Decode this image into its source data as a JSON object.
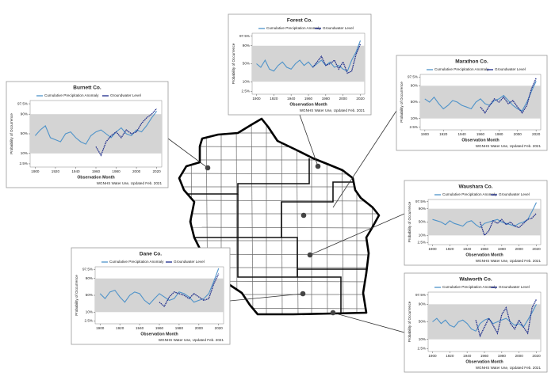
{
  "chart_data": [
    {
      "type": "line",
      "title": "Burnett Co.",
      "xlabel": "Observation Month",
      "ylabel": "Probability of Occurrence",
      "note": "WGNHS Water Use, Updated Feb. 2021",
      "x": [
        1900,
        1905,
        1910,
        1915,
        1920,
        1925,
        1930,
        1935,
        1940,
        1945,
        1950,
        1955,
        1960,
        1965,
        1970,
        1975,
        1980,
        1985,
        1990,
        1995,
        2000,
        2005,
        2010,
        2015,
        2020
      ],
      "series": [
        {
          "name": "Cumulative Precipitation Anomaly",
          "color": "#4f93c9",
          "values": [
            45,
            60,
            70,
            40,
            35,
            30,
            50,
            55,
            40,
            30,
            25,
            45,
            55,
            60,
            50,
            40,
            55,
            65,
            50,
            45,
            60,
            55,
            70,
            85,
            93
          ]
        },
        {
          "name": "Groundwater Level",
          "color": "#1b2a8a",
          "values": [
            null,
            null,
            null,
            null,
            null,
            null,
            null,
            null,
            null,
            null,
            null,
            null,
            20,
            8,
            30,
            45,
            55,
            40,
            60,
            50,
            55,
            75,
            85,
            90,
            95
          ]
        }
      ],
      "xlim": [
        1895,
        2025
      ],
      "xticks": [
        1900,
        1920,
        1940,
        1960,
        1980,
        2000,
        2020
      ],
      "ylim": [
        1.5,
        98.5
      ],
      "yscale": "probit",
      "yticks": [
        {
          "value": 2.5,
          "label": "2.5%"
        },
        {
          "value": 10,
          "label": "10%"
        },
        {
          "value": 50,
          "label": "50%"
        },
        {
          "value": 90,
          "label": "90%"
        },
        {
          "value": 97.5,
          "label": "97.5%"
        }
      ],
      "shaded_range": [
        10,
        90
      ]
    },
    {
      "type": "line",
      "title": "Forest Co.",
      "xlabel": "Observation Month",
      "ylabel": "Probability of Occurrence",
      "note": "WGNHS Water Use, Updated Feb. 2021",
      "x": [
        1900,
        1905,
        1910,
        1915,
        1920,
        1925,
        1930,
        1935,
        1940,
        1945,
        1950,
        1955,
        1960,
        1965,
        1970,
        1975,
        1980,
        1985,
        1990,
        1995,
        2000,
        2005,
        2010,
        2015,
        2020
      ],
      "series": [
        {
          "name": "Cumulative Precipitation Anomaly",
          "color": "#4f93c9",
          "values": [
            50,
            40,
            60,
            35,
            30,
            45,
            55,
            40,
            35,
            50,
            60,
            45,
            55,
            40,
            50,
            60,
            45,
            55,
            40,
            45,
            35,
            30,
            60,
            80,
            95
          ]
        },
        {
          "name": "Groundwater Level",
          "color": "#1b2a8a",
          "values": [
            null,
            null,
            null,
            null,
            null,
            null,
            null,
            null,
            null,
            null,
            null,
            null,
            null,
            40,
            55,
            70,
            45,
            50,
            60,
            35,
            55,
            25,
            30,
            75,
            92
          ]
        }
      ],
      "xlim": [
        1895,
        2025
      ],
      "xticks": [
        1900,
        1920,
        1940,
        1960,
        1980,
        2000,
        2020
      ],
      "ylim": [
        1.5,
        98.5
      ],
      "yscale": "probit",
      "yticks": [
        {
          "value": 2.5,
          "label": "2.5%"
        },
        {
          "value": 10,
          "label": "10%"
        },
        {
          "value": 50,
          "label": "50%"
        },
        {
          "value": 90,
          "label": "90%"
        },
        {
          "value": 97.5,
          "label": "97.5%"
        }
      ],
      "shaded_range": [
        10,
        90
      ]
    },
    {
      "type": "line",
      "title": "Marathon Co.",
      "xlabel": "Observation Month",
      "ylabel": "Probability of Occurrence",
      "note": "WGNHS Water Use, Updated Feb. 2021",
      "x": [
        1900,
        1905,
        1910,
        1915,
        1920,
        1925,
        1930,
        1935,
        1940,
        1945,
        1950,
        1955,
        1960,
        1965,
        1970,
        1975,
        1980,
        1985,
        1990,
        1995,
        2000,
        2005,
        2010,
        2015,
        2020
      ],
      "series": [
        {
          "name": "Cumulative Precipitation Anomaly",
          "color": "#4f93c9",
          "values": [
            60,
            50,
            65,
            45,
            30,
            40,
            55,
            50,
            40,
            35,
            30,
            50,
            60,
            45,
            40,
            55,
            60,
            70,
            55,
            40,
            30,
            25,
            50,
            80,
            95
          ]
        },
        {
          "name": "Groundwater Level",
          "color": "#1b2a8a",
          "values": [
            null,
            null,
            null,
            null,
            null,
            null,
            null,
            null,
            null,
            null,
            null,
            null,
            35,
            20,
            40,
            60,
            50,
            65,
            45,
            55,
            35,
            20,
            40,
            85,
            97
          ]
        }
      ],
      "xlim": [
        1895,
        2025
      ],
      "xticks": [
        1900,
        1920,
        1940,
        1960,
        1980,
        2000,
        2020
      ],
      "ylim": [
        1.5,
        98.5
      ],
      "yscale": "probit",
      "yticks": [
        {
          "value": 2.5,
          "label": "2.5%"
        },
        {
          "value": 10,
          "label": "10%"
        },
        {
          "value": 50,
          "label": "50%"
        },
        {
          "value": 90,
          "label": "90%"
        },
        {
          "value": 97.5,
          "label": "97.5%"
        }
      ],
      "shaded_range": [
        10,
        90
      ]
    },
    {
      "type": "line",
      "title": "Waushara Co.",
      "xlabel": "Observation Month",
      "ylabel": "Probability of Occurrence",
      "note": "WGNHS Water Use, Updated Feb. 2021",
      "x": [
        1900,
        1905,
        1910,
        1915,
        1920,
        1925,
        1930,
        1935,
        1940,
        1945,
        1950,
        1955,
        1960,
        1965,
        1970,
        1975,
        1980,
        1985,
        1990,
        1995,
        2000,
        2005,
        2010,
        2015,
        2020
      ],
      "series": [
        {
          "name": "Cumulative Precipitation Anomaly",
          "color": "#4f93c9",
          "values": [
            60,
            55,
            50,
            40,
            55,
            45,
            40,
            35,
            50,
            55,
            40,
            30,
            45,
            50,
            55,
            60,
            50,
            45,
            40,
            35,
            45,
            50,
            60,
            85,
            97
          ]
        },
        {
          "name": "Groundwater Level",
          "color": "#1b2a8a",
          "values": [
            null,
            null,
            null,
            null,
            null,
            null,
            null,
            null,
            null,
            null,
            null,
            50,
            10,
            20,
            55,
            45,
            60,
            40,
            50,
            35,
            30,
            45,
            60,
            65,
            80
          ]
        }
      ],
      "xlim": [
        1895,
        2025
      ],
      "xticks": [
        1900,
        1920,
        1940,
        1960,
        1980,
        2000,
        2020
      ],
      "ylim": [
        1.5,
        98.5
      ],
      "yscale": "probit",
      "yticks": [
        {
          "value": 2.5,
          "label": "2.5%"
        },
        {
          "value": 10,
          "label": "10%"
        },
        {
          "value": 50,
          "label": "50%"
        },
        {
          "value": 90,
          "label": "90%"
        },
        {
          "value": 97.5,
          "label": "97.5%"
        }
      ],
      "shaded_range": [
        10,
        90
      ]
    },
    {
      "type": "line",
      "title": "Dane Co.",
      "xlabel": "Observation Month",
      "ylabel": "Probability of Occurrence",
      "note": "WGNHS Water Use, Updated Feb. 2021",
      "x": [
        1900,
        1905,
        1910,
        1915,
        1920,
        1925,
        1930,
        1935,
        1940,
        1945,
        1950,
        1955,
        1960,
        1965,
        1970,
        1975,
        1980,
        1985,
        1990,
        1995,
        2000,
        2005,
        2010,
        2015,
        2020
      ],
      "series": [
        {
          "name": "Cumulative Precipitation Anomaly",
          "color": "#4f93c9",
          "values": [
            55,
            40,
            60,
            65,
            45,
            30,
            50,
            60,
            55,
            35,
            25,
            40,
            55,
            45,
            35,
            40,
            60,
            55,
            45,
            30,
            35,
            40,
            55,
            85,
            98
          ]
        },
        {
          "name": "Groundwater Level",
          "color": "#1b2a8a",
          "values": [
            null,
            null,
            null,
            null,
            null,
            null,
            null,
            null,
            null,
            null,
            null,
            null,
            30,
            20,
            45,
            60,
            55,
            50,
            40,
            55,
            45,
            35,
            40,
            80,
            95
          ]
        }
      ],
      "xlim": [
        1895,
        2025
      ],
      "xticks": [
        1900,
        1920,
        1940,
        1960,
        1980,
        2000,
        2020
      ],
      "ylim": [
        1.5,
        98.5
      ],
      "yscale": "probit",
      "yticks": [
        {
          "value": 2.5,
          "label": "2.5%"
        },
        {
          "value": 10,
          "label": "10%"
        },
        {
          "value": 50,
          "label": "50%"
        },
        {
          "value": 90,
          "label": "90%"
        },
        {
          "value": 97.5,
          "label": "97.5%"
        }
      ],
      "shaded_range": [
        10,
        90
      ]
    },
    {
      "type": "line",
      "title": "Walworth Co.",
      "xlabel": "Observation Month",
      "ylabel": "Probability of Occurrence",
      "note": "WGNHS Water Use, Updated Feb. 2021",
      "x": [
        1900,
        1905,
        1910,
        1915,
        1920,
        1925,
        1930,
        1935,
        1940,
        1945,
        1950,
        1955,
        1960,
        1965,
        1970,
        1975,
        1980,
        1985,
        1990,
        1995,
        2000,
        2005,
        2010,
        2015,
        2020
      ],
      "series": [
        {
          "name": "Cumulative Precipitation Anomaly",
          "color": "#4f93c9",
          "values": [
            50,
            60,
            45,
            55,
            40,
            35,
            50,
            55,
            45,
            30,
            25,
            45,
            55,
            60,
            45,
            50,
            55,
            60,
            50,
            40,
            45,
            35,
            55,
            75,
            90
          ]
        },
        {
          "name": "Groundwater Level",
          "color": "#1b2a8a",
          "values": [
            null,
            null,
            null,
            null,
            null,
            null,
            null,
            null,
            null,
            null,
            55,
            15,
            35,
            60,
            40,
            20,
            70,
            85,
            45,
            30,
            55,
            35,
            20,
            85,
            95
          ]
        }
      ],
      "xlim": [
        1895,
        2025
      ],
      "xticks": [
        1900,
        1920,
        1940,
        1960,
        1980,
        2000,
        2020
      ],
      "ylim": [
        1.5,
        98.5
      ],
      "yscale": "probit",
      "yticks": [
        {
          "value": 2.5,
          "label": "2.5%"
        },
        {
          "value": 10,
          "label": "10%"
        },
        {
          "value": 50,
          "label": "50%"
        },
        {
          "value": 90,
          "label": "90%"
        },
        {
          "value": 97.5,
          "label": "97.5%"
        }
      ],
      "shaded_range": [
        10,
        90
      ]
    }
  ]
}
